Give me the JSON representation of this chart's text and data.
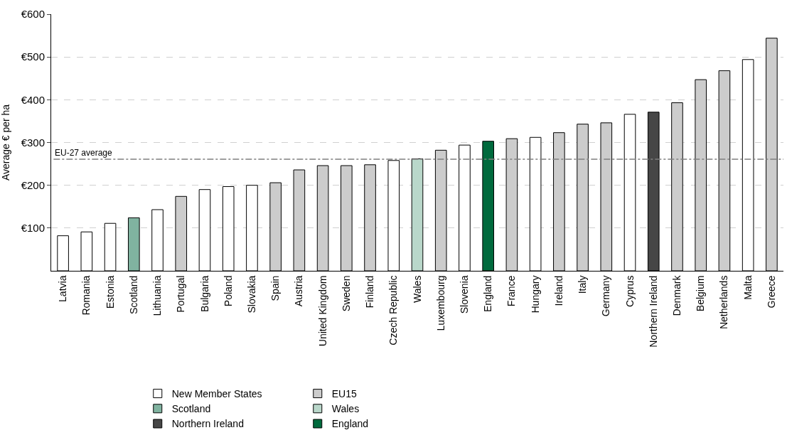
{
  "chart_data": {
    "type": "bar",
    "ylabel": "Average € per ha",
    "categories": [
      "Latvia",
      "Romania",
      "Estonia",
      "Scotland",
      "Lithuania",
      "Portugal",
      "Bulgaria",
      "Poland",
      "Slovakia",
      "Spain",
      "Austria",
      "United Kingdom",
      "Sweden",
      "Finland",
      "Czech Republic",
      "Wales",
      "Luxembourg",
      "Slovenia",
      "England",
      "France",
      "Hungary",
      "Ireland",
      "Italy",
      "Germany",
      "Cyprus",
      "Northern Ireland",
      "Denmark",
      "Belgium",
      "Netherlands",
      "Malta",
      "Greece"
    ],
    "series": [
      {
        "name": "New Member States",
        "color": "#ffffff",
        "values": [
          82,
          91,
          111,
          null,
          143,
          null,
          190,
          197,
          200,
          null,
          null,
          null,
          null,
          null,
          258,
          null,
          null,
          294,
          null,
          null,
          312,
          null,
          null,
          null,
          366,
          null,
          null,
          null,
          null,
          494,
          null
        ]
      },
      {
        "name": "EU15",
        "color": "#cccccc",
        "values": [
          null,
          null,
          null,
          null,
          null,
          174,
          null,
          null,
          null,
          206,
          236,
          246,
          246,
          248,
          null,
          null,
          282,
          null,
          null,
          309,
          null,
          323,
          343,
          346,
          null,
          null,
          393,
          447,
          468,
          null,
          544
        ]
      },
      {
        "name": "Scotland",
        "color": "#80b3a0",
        "values": [
          null,
          null,
          null,
          124,
          null,
          null,
          null,
          null,
          null,
          null,
          null,
          null,
          null,
          null,
          null,
          null,
          null,
          null,
          null,
          null,
          null,
          null,
          null,
          null,
          null,
          null,
          null,
          null,
          null,
          null,
          null
        ]
      },
      {
        "name": "Wales",
        "color": "#b9d7ca",
        "values": [
          null,
          null,
          null,
          null,
          null,
          null,
          null,
          null,
          null,
          null,
          null,
          null,
          null,
          null,
          null,
          262,
          null,
          null,
          null,
          null,
          null,
          null,
          null,
          null,
          null,
          null,
          null,
          null,
          null,
          null,
          null
        ]
      },
      {
        "name": "Northern Ireland",
        "color": "#464646",
        "values": [
          null,
          null,
          null,
          null,
          null,
          null,
          null,
          null,
          null,
          null,
          null,
          null,
          null,
          null,
          null,
          null,
          null,
          null,
          null,
          null,
          null,
          null,
          null,
          null,
          null,
          371,
          null,
          null,
          null,
          null,
          null
        ]
      },
      {
        "name": "England",
        "color": "#006a3d",
        "values": [
          null,
          null,
          null,
          null,
          null,
          null,
          null,
          null,
          null,
          null,
          null,
          null,
          null,
          null,
          null,
          null,
          null,
          null,
          303,
          null,
          null,
          null,
          null,
          null,
          null,
          null,
          null,
          null,
          null,
          null,
          null
        ]
      }
    ],
    "ylim": [
      0,
      600
    ],
    "yticks": [
      {
        "value": 100,
        "label": "€100"
      },
      {
        "value": 200,
        "label": "€200"
      },
      {
        "value": 300,
        "label": "€300"
      },
      {
        "value": 400,
        "label": "€400"
      },
      {
        "value": 500,
        "label": "€500"
      },
      {
        "value": 600,
        "label": "€600"
      }
    ],
    "ref_lines": [
      {
        "axis": "y",
        "value": 261,
        "label": "EU-27 average",
        "color": "#808080",
        "line_style": "dashdot"
      }
    ],
    "grid": "y",
    "legend": "bottom"
  }
}
